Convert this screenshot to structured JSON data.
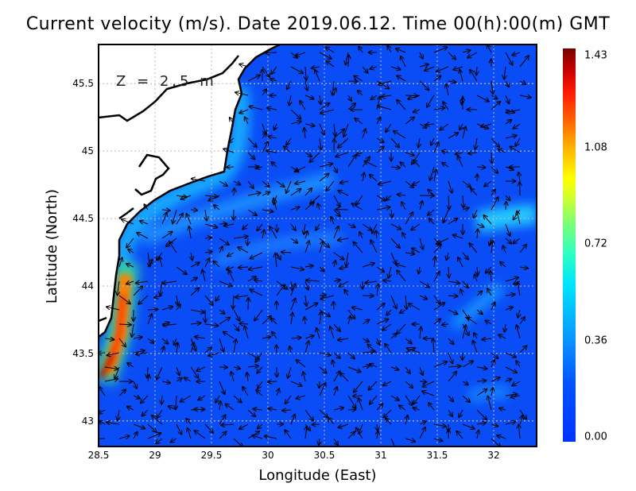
{
  "title": "Current velocity (m/s). Date 2019.06.12. Time 00(h):00(m) GMT",
  "depth_label": "Z = 2.5 m",
  "xlabel": "Longitude (East)",
  "ylabel": "Latitude (North)",
  "x_ticks": [
    "28.5",
    "29",
    "29.5",
    "30",
    "30.5",
    "31",
    "31.5",
    "32"
  ],
  "y_ticks": [
    "45.5",
    "45",
    "44.5",
    "44",
    "43.5",
    "43"
  ],
  "colorbar": {
    "ticks": [
      "1.43",
      "1.08",
      "0.72",
      "0.36",
      "0.00"
    ],
    "min": 0.0,
    "max": 1.43
  },
  "chart_data": {
    "type": "heatmap",
    "title": "Current velocity (m/s). Date 2019.06.12. Time 00(h):00(m) GMT",
    "xlabel": "Longitude (East)",
    "ylabel": "Latitude (North)",
    "xlim": [
      28.5,
      32.38
    ],
    "ylim": [
      42.81,
      45.79
    ],
    "grid": true,
    "colorbar_range": [
      0.0,
      1.43
    ]
  }
}
